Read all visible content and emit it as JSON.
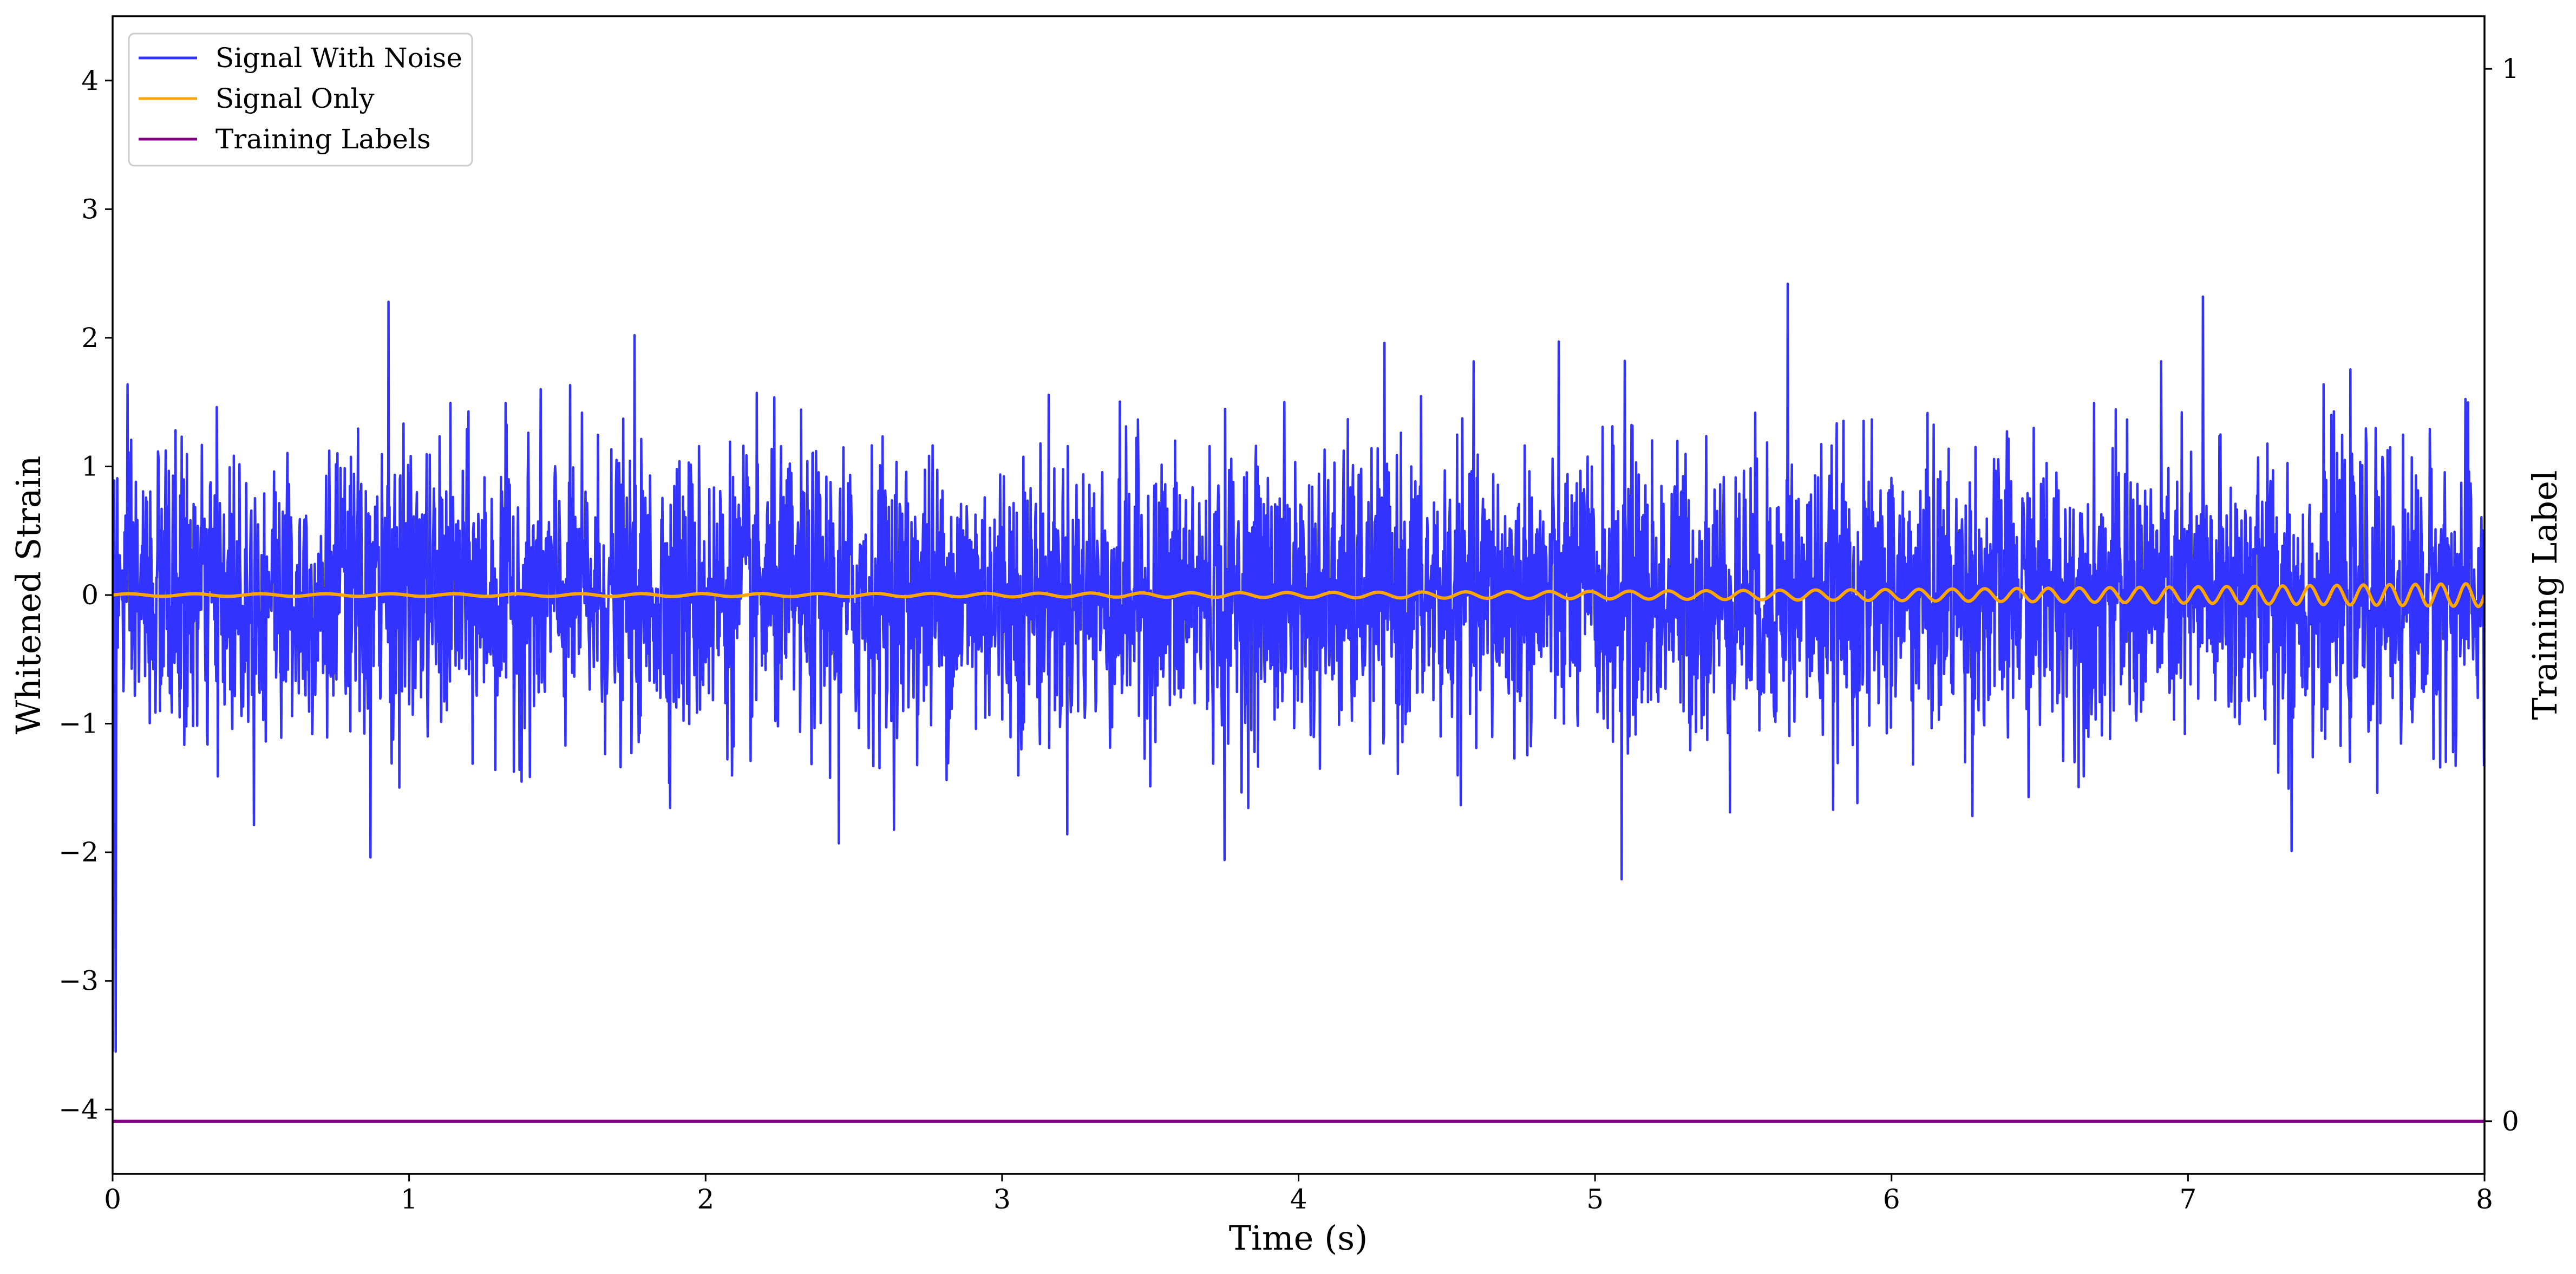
{
  "chart_data": {
    "type": "line",
    "xlabel": "Time (s)",
    "ylabel": "Whitened Strain",
    "y2label": "Training Label",
    "xlim": [
      0,
      8
    ],
    "ylim": [
      -4.5,
      4.5
    ],
    "y2lim": [
      -0.05,
      1.05
    ],
    "xticks": [
      0,
      1,
      2,
      3,
      4,
      5,
      6,
      7,
      8
    ],
    "yticks": [
      -4,
      -3,
      -2,
      -1,
      0,
      1,
      2,
      3,
      4
    ],
    "y2ticks": [
      0,
      1
    ],
    "legend_position": "top-left",
    "legend": [
      "Signal With Noise",
      "Signal Only",
      "Training Labels"
    ],
    "series": [
      {
        "name": "Signal With Noise",
        "color": "#3333ff",
        "kind": "noise",
        "x": [
          0,
          8
        ],
        "amplitude_std": 0.55,
        "notable_peaks": [
          [
            0.93,
            2.28
          ],
          [
            1.76,
            2.02
          ],
          [
            5.65,
            2.42
          ],
          [
            7.05,
            2.32
          ],
          [
            5.1,
            1.82
          ],
          [
            0.87,
            -2.04
          ],
          [
            2.45,
            -1.93
          ],
          [
            3.75,
            -2.06
          ],
          [
            5.09,
            -2.21
          ],
          [
            7.35,
            -1.99
          ],
          [
            0.01,
            -3.55
          ]
        ]
      },
      {
        "name": "Signal Only",
        "color": "#ffa500",
        "kind": "chirp",
        "x": [
          0,
          8
        ],
        "baseline": 0.0,
        "amplitude_start": 0.01,
        "amplitude_end": 0.09,
        "frequency_start_hz": 4.5,
        "frequency_end_hz": 12
      },
      {
        "name": "Training Labels",
        "color": "#800080",
        "kind": "constant",
        "axis": "right",
        "x": [
          0,
          8
        ],
        "y": [
          0,
          0
        ]
      }
    ]
  }
}
